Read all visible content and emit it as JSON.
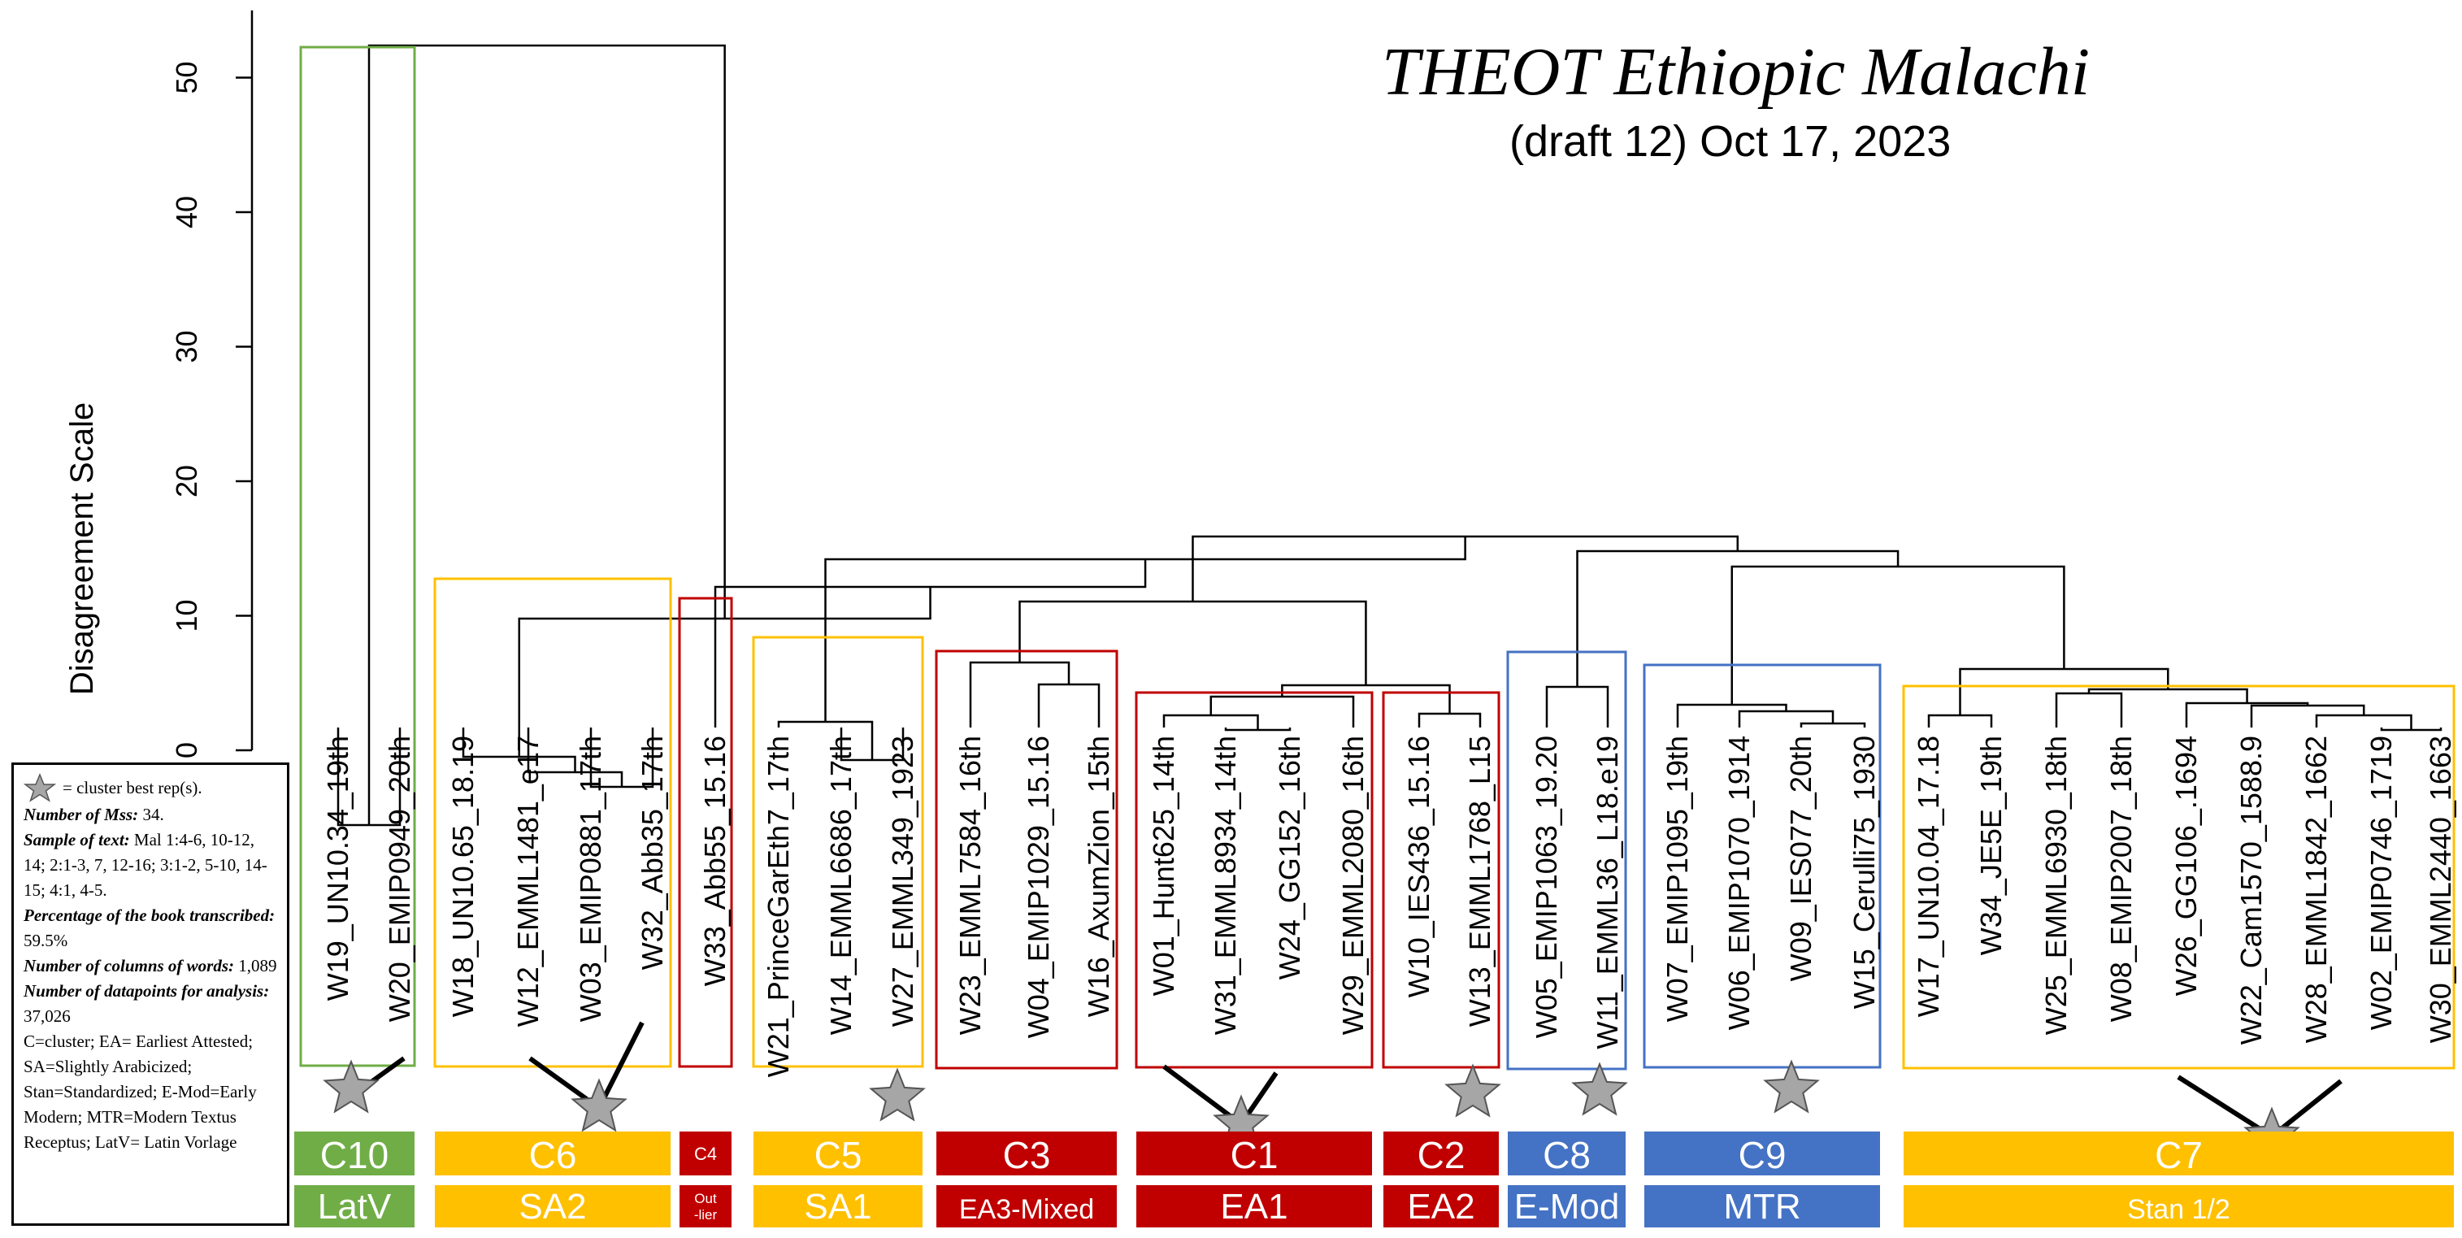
{
  "header": {
    "title": "THEOT Ethiopic Malachi",
    "subtitle": "(draft 12) Oct 17, 2023"
  },
  "axis": {
    "ylabel": "Disagreement Scale",
    "ticks": [
      0,
      10,
      20,
      30,
      40,
      50
    ],
    "range": [
      0,
      55
    ]
  },
  "legend": {
    "star_text": "= cluster best rep(s).",
    "mss_label": "Number of Mss:",
    "mss_value": "34.",
    "sample_label": "Sample  of text:",
    "sample_value": "Mal 1:4-6, 10-12, 14; 2:1-3, 7, 12-16; 3:1-2, 5-10, 14-15; 4:1, 4-5.",
    "pct_label": "Percentage of the book transcribed:",
    "pct_value": "59.5%",
    "cols_label": "Number of columns of words:",
    "cols_value": "1,089",
    "dp_label": "Number of datapoints for analysis:",
    "dp_value": "37,026",
    "abbrev": "C=cluster; EA= Earliest Attested; SA=Slightly Arabicized; Stan=Standardized; E-Mod=Early Modern; MTR=Modern Textus Receptus; LatV= Latin Vorlage"
  },
  "colors": {
    "green": "#70AD47",
    "orange": "#FFC000",
    "red": "#C00000",
    "blue": "#4472C4",
    "star": "#A6A6A6"
  },
  "leaves": [
    "W19_UN10.34_19th",
    "W20_EMIP0949_20th",
    "W18_UN10.65_18.19",
    "W12_EMML1481_e17",
    "W03_EMIP0881_17th",
    "W32_Abb35_17th",
    "W33_Abb55_15.16",
    "W21_PrinceGarEth7_17th",
    "W14_EMML6686_17th",
    "W27_EMML349_1923",
    "W23_EMML7584_16th",
    "W04_EMIP1029_15.16",
    "W16_AxumZion_15th",
    "W01_Hunt625_14th",
    "W31_EMML8934_14th",
    "W24_GG152_16th",
    "W29_EMML2080_16th",
    "W10_IES436_15.16",
    "W13_EMML1768_L15",
    "W05_EMIP1063_19.20",
    "W11_EMML36_L18.e19",
    "W07_EMIP1095_19th",
    "W06_EMIP1070_1914",
    "W09_IES077_20th",
    "W15_Cerulli75_1930",
    "W17_UN10.04_17.18",
    "W34_JE5E_19th",
    "W25_EMML6930_18th",
    "W08_EMIP2007_18th",
    "W26_GG106_.1694",
    "W22_Cam1570_1588.9",
    "W28_EMML1842_1662",
    "W02_EMIP0746_1719",
    "W30_EMML2440_1663"
  ],
  "clusters": [
    {
      "cluster": "C10",
      "group": "LatV",
      "color": "green"
    },
    {
      "cluster": "C6",
      "group": "SA2",
      "color": "orange"
    },
    {
      "cluster": "C4",
      "group": "Out -lier",
      "color": "red"
    },
    {
      "cluster": "C5",
      "group": "SA1",
      "color": "orange"
    },
    {
      "cluster": "C3",
      "group": "EA3-Mixed",
      "color": "red"
    },
    {
      "cluster": "C1",
      "group": "EA1",
      "color": "red"
    },
    {
      "cluster": "C2",
      "group": "EA2",
      "color": "red"
    },
    {
      "cluster": "C8",
      "group": "E-Mod",
      "color": "blue"
    },
    {
      "cluster": "C9",
      "group": "MTR",
      "color": "blue"
    },
    {
      "cluster": "C7",
      "group": "Stan 1/2",
      "color": "orange"
    }
  ]
}
